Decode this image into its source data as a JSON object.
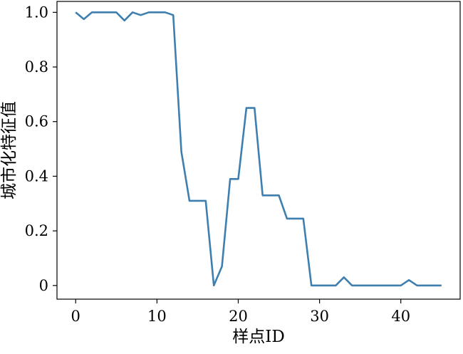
{
  "chart_data": {
    "type": "line",
    "title": "",
    "xlabel": "样点ID",
    "ylabel": "城市化特征值",
    "xlim": [
      -2.3,
      47.3
    ],
    "ylim": [
      -0.05,
      1.04
    ],
    "xticks": [
      0,
      10,
      20,
      30,
      40
    ],
    "xtick_labels": [
      "0",
      "10",
      "20",
      "30",
      "40"
    ],
    "yticks": [
      0,
      0.2,
      0.4,
      0.6,
      0.8,
      1.0
    ],
    "ytick_labels": [
      "0",
      "0.2",
      "0.4",
      "0.6",
      "0.8",
      "1.0"
    ],
    "grid": false,
    "legend": "none",
    "series": [
      {
        "color": "#3f7fb0",
        "x": [
          0,
          1,
          2,
          3,
          4,
          5,
          6,
          7,
          8,
          9,
          10,
          11,
          12,
          13,
          14,
          15,
          16,
          17,
          18,
          19,
          20,
          21,
          22,
          23,
          24,
          25,
          26,
          27,
          28,
          29,
          30,
          31,
          32,
          33,
          34,
          35,
          36,
          37,
          38,
          39,
          40,
          41,
          42,
          43,
          44,
          45
        ],
        "y": [
          1.0,
          0.975,
          1.0,
          1.0,
          1.0,
          1.0,
          0.97,
          1.0,
          0.99,
          1.0,
          1.0,
          1.0,
          0.99,
          0.49,
          0.31,
          0.31,
          0.31,
          0.0,
          0.07,
          0.39,
          0.39,
          0.65,
          0.65,
          0.33,
          0.33,
          0.33,
          0.245,
          0.245,
          0.245,
          0.0,
          0.0,
          0.0,
          0.0,
          0.03,
          0.0,
          0.0,
          0.0,
          0.0,
          0.0,
          0.0,
          0.0,
          0.02,
          0.0,
          0.0,
          0.0,
          0.0
        ]
      }
    ]
  }
}
